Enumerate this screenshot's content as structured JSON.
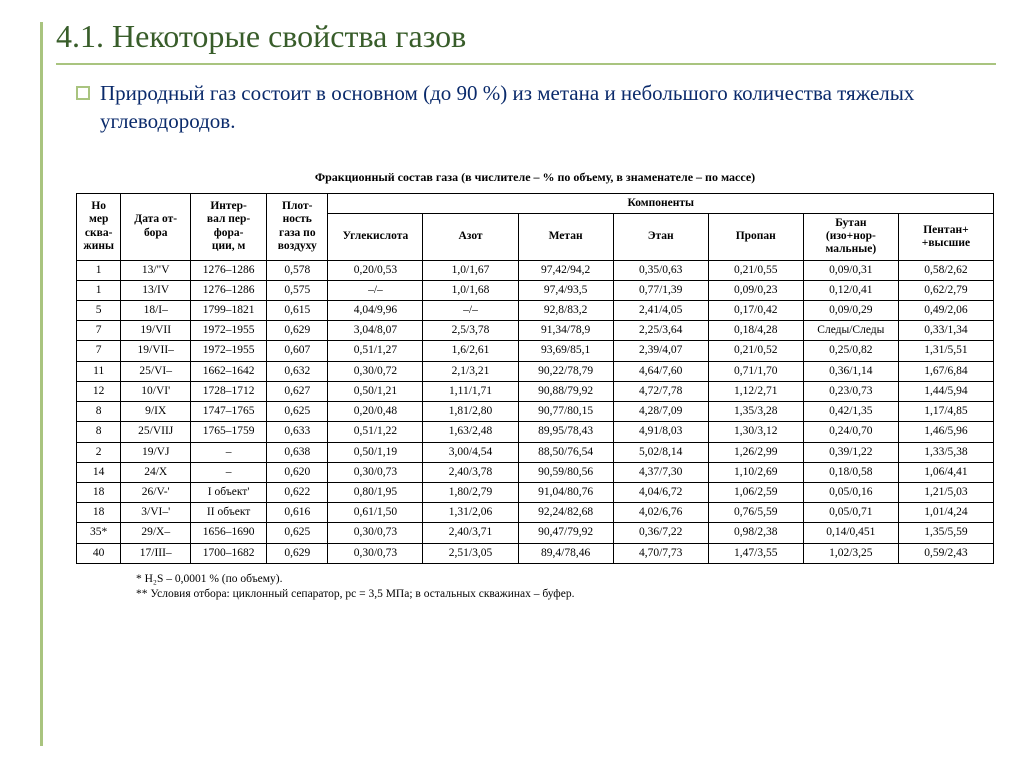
{
  "slide": {
    "title": "4.1. Некоторые свойства газов",
    "bullet": "Природный газ состоит в основном (до 90 %) из метана и небольшого количества тяжелых углеводородов."
  },
  "table": {
    "caption": "Фракционный состав газа (в числителе – % по объему, в знаменателе – по массе)",
    "head": {
      "col0": "Но\nмер\nсква-\nжины",
      "col1": "Дата от-\nбора",
      "col2": "Интер-\nвал пер-\nфора-\nции, м",
      "col3": "Плот-\nность\nгаза по\nвоздуху",
      "group": "Компоненты",
      "comp": [
        "Углекислота",
        "Азот",
        "Метан",
        "Этан",
        "Пропан",
        "Бутан\n(изо+нор-\nмальные)",
        "Пентан+\n+высшие"
      ]
    },
    "rows": [
      [
        "1",
        "13/\"V",
        "1276–1286",
        "0,578",
        "0,20/0,53",
        "1,0/1,67",
        "97,42/94,2",
        "0,35/0,63",
        "0,21/0,55",
        "0,09/0,31",
        "0,58/2,62"
      ],
      [
        "1",
        "13/IV",
        "1276–1286",
        "0,575",
        "–/–",
        "1,0/1,68",
        "97,4/93,5",
        "0,77/1,39",
        "0,09/0,23",
        "0,12/0,41",
        "0,62/2,79"
      ],
      [
        "5",
        "18/I–",
        "1799–1821",
        "0,615",
        "4,04/9,96",
        "–/–",
        "92,8/83,2",
        "2,41/4,05",
        "0,17/0,42",
        "0,09/0,29",
        "0,49/2,06"
      ],
      [
        "7",
        "19/VII",
        "1972–1955",
        "0,629",
        "3,04/8,07",
        "2,5/3,78",
        "91,34/78,9",
        "2,25/3,64",
        "0,18/4,28",
        "Следы/Следы",
        "0,33/1,34"
      ],
      [
        "7",
        "19/VII–",
        "1972–1955",
        "0,607",
        "0,51/1,27",
        "1,6/2,61",
        "93,69/85,1",
        "2,39/4,07",
        "0,21/0,52",
        "0,25/0,82",
        "1,31/5,51"
      ],
      [
        "11",
        "25/VI–",
        "1662–1642",
        "0,632",
        "0,30/0,72",
        "2,1/3,21",
        "90,22/78,79",
        "4,64/7,60",
        "0,71/1,70",
        "0,36/1,14",
        "1,67/6,84"
      ],
      [
        "12",
        "10/VI'",
        "1728–1712",
        "0,627",
        "0,50/1,21",
        "1,11/1,71",
        "90,88/79,92",
        "4,72/7,78",
        "1,12/2,71",
        "0,23/0,73",
        "1,44/5,94"
      ],
      [
        "8",
        "9/IX",
        "1747–1765",
        "0,625",
        "0,20/0,48",
        "1,81/2,80",
        "90,77/80,15",
        "4,28/7,09",
        "1,35/3,28",
        "0,42/1,35",
        "1,17/4,85"
      ],
      [
        "8",
        "25/VIIJ",
        "1765–1759",
        "0,633",
        "0,51/1,22",
        "1,63/2,48",
        "89,95/78,43",
        "4,91/8,03",
        "1,30/3,12",
        "0,24/0,70",
        "1,46/5,96"
      ],
      [
        "2",
        "19/VJ",
        "–",
        "0,638",
        "0,50/1,19",
        "3,00/4,54",
        "88,50/76,54",
        "5,02/8,14",
        "1,26/2,99",
        "0,39/1,22",
        "1,33/5,38"
      ],
      [
        "14",
        "24/X",
        "–",
        "0,620",
        "0,30/0,73",
        "2,40/3,78",
        "90,59/80,56",
        "4,37/7,30",
        "1,10/2,69",
        "0,18/0,58",
        "1,06/4,41"
      ],
      [
        "18",
        "26/V-'",
        "I объект'",
        "0,622",
        "0,80/1,95",
        "1,80/2,79",
        "91,04/80,76",
        "4,04/6,72",
        "1,06/2,59",
        "0,05/0,16",
        "1,21/5,03"
      ],
      [
        "18",
        "3/VI–'",
        "II объект",
        "0,616",
        "0,61/1,50",
        "1,31/2,06",
        "92,24/82,68",
        "4,02/6,76",
        "0,76/5,59",
        "0,05/0,71",
        "1,01/4,24"
      ],
      [
        "35*",
        "29/X–",
        "1656–1690",
        "0,625",
        "0,30/0,73",
        "2,40/3,71",
        "90,47/79,92",
        "0,36/7,22",
        "0,98/2,38",
        "0,14/0,451",
        "1,35/5,59"
      ],
      [
        "40",
        "17/III–",
        "1700–1682",
        "0,629",
        "0,30/0,73",
        "2,51/3,05",
        "89,4/78,46",
        "4,70/7,73",
        "1,47/3,55",
        "1,02/3,25",
        "0,59/2,43"
      ]
    ]
  },
  "footnotes": {
    "l1": "* H₂S – 0,0001 % (по объему).",
    "l2": "** Условия отбора: циклонный сепаратор, pс = 3,5 МПа; в остальных скважинах – буфер."
  },
  "style": {
    "title_color": "#385d2a",
    "bullet_color": "#0a2a6b",
    "accent_color": "#a9c47f",
    "background": "#ffffff"
  }
}
